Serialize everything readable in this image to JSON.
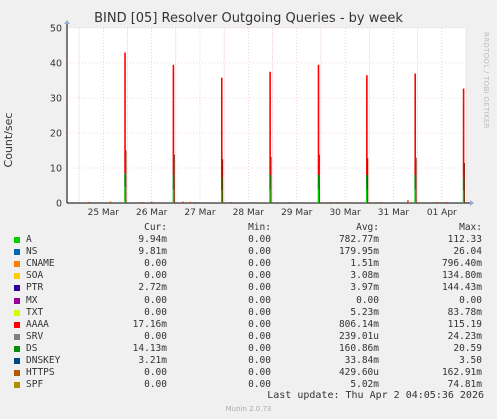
{
  "title": "BIND [05] Resolver Outgoing Queries - by week",
  "ylabel": "Count/sec",
  "watermark": "RRDTOOL / TOBI OETIKER",
  "colors": {
    "background": "#f0f0f0",
    "plot_background": "#ffffff",
    "grid": "#e8b0b0",
    "axis": "#000000"
  },
  "chart_data": {
    "type": "area",
    "title": "BIND [05] Resolver Outgoing Queries - by week",
    "ylabel": "Count/sec",
    "ylim": [
      0,
      50
    ],
    "yticks": [
      0,
      10,
      20,
      30,
      40,
      50
    ],
    "xticks": [
      "25 Mar",
      "26 Mar",
      "27 Mar",
      "28 Mar",
      "29 Mar",
      "30 Mar",
      "31 Mar",
      "01 Apr"
    ],
    "grid": true,
    "spikes": [
      {
        "day": 1.2,
        "AAAA": 34.5,
        "DS": 4.0,
        "A": 4.5
      },
      {
        "day": 2.2,
        "AAAA": 31.5,
        "DS": 4.0,
        "A": 4.0
      },
      {
        "day": 3.2,
        "AAAA": 28.5,
        "DS": 3.7,
        "A": 3.6
      },
      {
        "day": 4.2,
        "AAAA": 29.5,
        "DS": 4.0,
        "A": 4.0
      },
      {
        "day": 5.2,
        "AAAA": 31.5,
        "DS": 4.0,
        "A": 4.0
      },
      {
        "day": 6.2,
        "AAAA": 28.5,
        "DS": 4.0,
        "A": 4.0
      },
      {
        "day": 7.2,
        "AAAA": 29.0,
        "DS": 4.0,
        "A": 4.0
      },
      {
        "day": 8.2,
        "AAAA": 25.5,
        "DS": 3.7,
        "A": 3.5
      }
    ],
    "noise": [
      {
        "day": 0.45,
        "v": 0.3
      },
      {
        "day": 0.9,
        "v": 0.4
      },
      {
        "day": 1.55,
        "v": 0.3
      },
      {
        "day": 1.75,
        "v": 0.4
      },
      {
        "day": 2.4,
        "v": 0.4
      },
      {
        "day": 2.55,
        "v": 0.35
      },
      {
        "day": 2.65,
        "v": 0.3
      },
      {
        "day": 3.4,
        "v": 0.3
      },
      {
        "day": 4.6,
        "v": 0.3
      },
      {
        "day": 5.45,
        "v": 0.3
      },
      {
        "day": 5.6,
        "v": 0.3
      },
      {
        "day": 5.75,
        "v": 0.25
      },
      {
        "day": 6.5,
        "v": 0.3
      },
      {
        "day": 7.05,
        "v": 0.8
      },
      {
        "day": 7.65,
        "v": 0.3
      },
      {
        "day": 7.85,
        "v": 0.3
      }
    ]
  },
  "legend": {
    "headers": {
      "cur": "Cur:",
      "min": "Min:",
      "avg": "Avg:",
      "max": "Max:"
    },
    "rows": [
      {
        "name": "A",
        "color": "#00cc00",
        "cur": "9.94m",
        "min": "0.00",
        "avg": "782.77m",
        "max": "112.33"
      },
      {
        "name": "NS",
        "color": "#0066b3",
        "cur": "9.81m",
        "min": "0.00",
        "avg": "179.95m",
        "max": "26.04"
      },
      {
        "name": "CNAME",
        "color": "#ff8000",
        "cur": "0.00",
        "min": "0.00",
        "avg": "1.51m",
        "max": "796.40m"
      },
      {
        "name": "SOA",
        "color": "#ffcc00",
        "cur": "0.00",
        "min": "0.00",
        "avg": "3.08m",
        "max": "134.80m"
      },
      {
        "name": "PTR",
        "color": "#330099",
        "cur": "2.72m",
        "min": "0.00",
        "avg": "3.97m",
        "max": "144.43m"
      },
      {
        "name": "MX",
        "color": "#990099",
        "cur": "0.00",
        "min": "0.00",
        "avg": "0.00",
        "max": "0.00"
      },
      {
        "name": "TXT",
        "color": "#ccff00",
        "cur": "0.00",
        "min": "0.00",
        "avg": "5.23m",
        "max": "83.78m"
      },
      {
        "name": "AAAA",
        "color": "#ff0000",
        "cur": "17.16m",
        "min": "0.00",
        "avg": "806.14m",
        "max": "115.19"
      },
      {
        "name": "SRV",
        "color": "#808080",
        "cur": "0.00",
        "min": "0.00",
        "avg": "239.01u",
        "max": "24.23m"
      },
      {
        "name": "DS",
        "color": "#008f00",
        "cur": "14.13m",
        "min": "0.00",
        "avg": "160.86m",
        "max": "20.59"
      },
      {
        "name": "DNSKEY",
        "color": "#00487d",
        "cur": "3.21m",
        "min": "0.00",
        "avg": "33.84m",
        "max": "3.50"
      },
      {
        "name": "HTTPS",
        "color": "#b35a00",
        "cur": "0.00",
        "min": "0.00",
        "avg": "429.60u",
        "max": "162.91m"
      },
      {
        "name": "SPF",
        "color": "#b38f00",
        "cur": "0.00",
        "min": "0.00",
        "avg": "5.02m",
        "max": "74.81m"
      }
    ]
  },
  "footer": {
    "last_update": "Last update: Thu Apr  2 04:05:36 2026",
    "version": "Munin 2.0.73"
  }
}
